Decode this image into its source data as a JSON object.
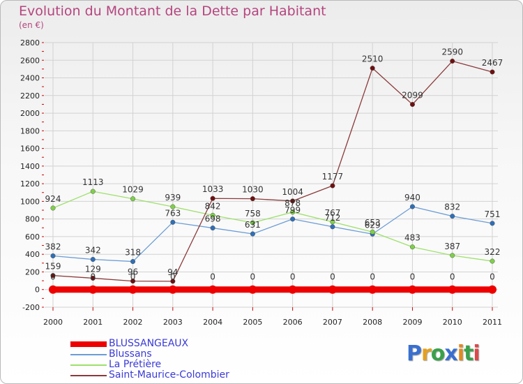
{
  "header": {
    "title": "Evolution du Montant de la Dette par Habitant",
    "subtitle": "(en €)"
  },
  "colors": {
    "title": "#b5457e",
    "legend_text": "#3a3ad6",
    "grid": "#d2d2d2",
    "axis_tick": "#cc0000"
  },
  "logo": {
    "text": "Proxiti",
    "letter_colors": [
      "#3a6fd0",
      "#e5a020",
      "#3aa04a",
      "#3a6fd0",
      "#e08a20",
      "#3aa04a",
      "#d94a4a"
    ]
  },
  "chart_data": {
    "type": "line",
    "title": "Evolution du Montant de la Dette par Habitant",
    "subtitle": "(en €)",
    "ylim": [
      -200,
      2800
    ],
    "yticks": [
      -200,
      0,
      200,
      400,
      600,
      800,
      1000,
      1200,
      1400,
      1600,
      1800,
      2000,
      2200,
      2400,
      2600,
      2800
    ],
    "x": [
      "2000",
      "2001",
      "2002",
      "2003",
      "2004",
      "2005",
      "2006",
      "2007",
      "2008",
      "2009",
      "2010",
      "2011"
    ],
    "grid": true,
    "legend_position": "bottom-left",
    "series": [
      {
        "name": "BLUSSANGEAUX",
        "color": "#ee0000",
        "marker_color": "#ee0000",
        "values": [
          0,
          0,
          0,
          0,
          0,
          0,
          0,
          0,
          0,
          0,
          0,
          0
        ]
      },
      {
        "name": "Blussans",
        "color": "#6b9dd6",
        "marker_color": "#2f6fb6",
        "values": [
          382,
          342,
          318,
          763,
          698,
          631,
          799,
          712,
          629,
          940,
          832,
          751
        ]
      },
      {
        "name": "La Prétière",
        "color": "#9ee06b",
        "marker_color": "#7fd048",
        "values": [
          924,
          1113,
          1029,
          939,
          842,
          758,
          878,
          767,
          653,
          483,
          387,
          322
        ]
      },
      {
        "name": "Saint-Maurice-Colombier",
        "color": "#8b3a3a",
        "marker_color": "#6e1010",
        "values": [
          159,
          129,
          96,
          94,
          1033,
          1030,
          1004,
          1177,
          2510,
          2099,
          2590,
          2467
        ]
      }
    ]
  }
}
